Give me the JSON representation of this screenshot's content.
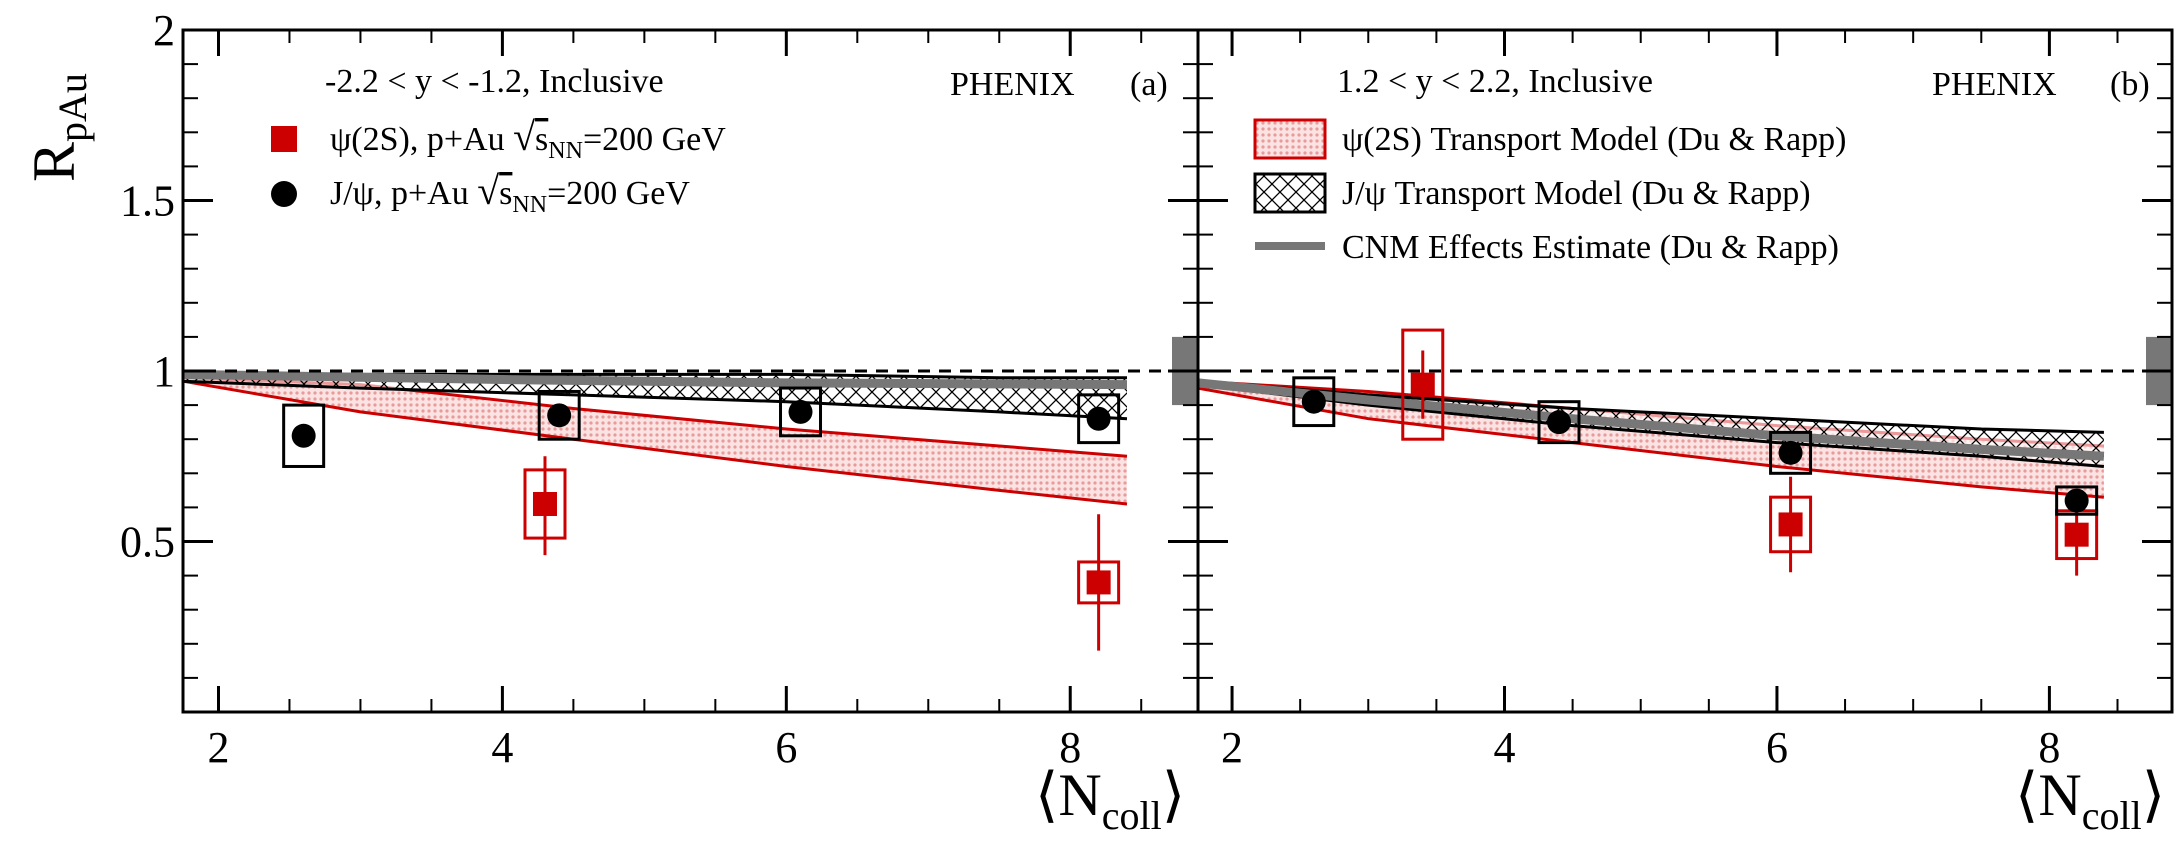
{
  "chart_data": {
    "type": "scatter",
    "ylabel": {
      "main": "R",
      "sub": "pAu"
    },
    "xlabel": {
      "main": "N",
      "sub": "coll"
    },
    "ylim": [
      0,
      2
    ],
    "yticks": [
      {
        "value": 0.5,
        "label": "0.5"
      },
      {
        "value": 1,
        "label": "1"
      },
      {
        "value": 1.5,
        "label": "1.5"
      },
      {
        "value": 2,
        "label": "2"
      }
    ],
    "reference_line": 1,
    "colors": {
      "psi2s": "#cc0000",
      "jpsi": "#000000",
      "cnm": "#777777",
      "band_fill": "#f4c8c8"
    },
    "panels": [
      {
        "id": "a",
        "tag": "(a)",
        "experiment": "PHENIX",
        "rapidity": "-2.2 < y < -1.2, Inclusive",
        "xlim": [
          1.75,
          8.9
        ],
        "xticks": [
          {
            "value": 2,
            "label": "2"
          },
          {
            "value": 4,
            "label": "4"
          },
          {
            "value": 6,
            "label": "6"
          },
          {
            "value": 8,
            "label": "8"
          }
        ],
        "global_uncertainty": [
          0.9,
          1.1
        ],
        "legend": [
          {
            "marker": "square",
            "label_pre": "ψ(2S), p+Au ",
            "sqrt_sub": "NN",
            "label_post": "=200 GeV"
          },
          {
            "marker": "circle",
            "label_pre": "J/ψ, p+Au ",
            "sqrt_sub": "NN",
            "label_post": "=200 GeV"
          }
        ],
        "series": [
          {
            "name": "ψ(2S), p+Au √sNN=200 GeV",
            "marker": "square",
            "points": [
              {
                "x": 4.3,
                "y": 0.61,
                "err_lo": 0.15,
                "err_hi": 0.14,
                "sys": 0.1
              },
              {
                "x": 8.2,
                "y": 0.38,
                "err_lo": 0.2,
                "err_hi": 0.2,
                "sys": 0.06
              }
            ]
          },
          {
            "name": "J/ψ, p+Au √sNN=200 GeV",
            "marker": "circle",
            "points": [
              {
                "x": 2.6,
                "y": 0.81,
                "err_lo": 0.03,
                "err_hi": 0.03,
                "sys": 0.09
              },
              {
                "x": 4.4,
                "y": 0.87,
                "err_lo": 0.03,
                "err_hi": 0.03,
                "sys": 0.07
              },
              {
                "x": 6.1,
                "y": 0.88,
                "err_lo": 0.02,
                "err_hi": 0.02,
                "sys": 0.07
              },
              {
                "x": 8.2,
                "y": 0.86,
                "err_lo": 0.02,
                "err_hi": 0.02,
                "sys": 0.07
              }
            ]
          }
        ],
        "bands": [
          {
            "name": "ψ(2S) Transport Model (Du & Rapp)",
            "style": "dots",
            "x": [
              1.75,
              3,
              4.5,
              6,
              7.5,
              8.4
            ],
            "lo": [
              0.97,
              0.88,
              0.8,
              0.72,
              0.65,
              0.61
            ],
            "hi": [
              0.98,
              0.96,
              0.89,
              0.83,
              0.78,
              0.75
            ]
          },
          {
            "name": "J/ψ Transport Model (Du & Rapp)",
            "style": "hatch",
            "x": [
              1.75,
              3,
              4.5,
              6,
              7.5,
              8.4
            ],
            "lo": [
              0.97,
              0.95,
              0.93,
              0.91,
              0.88,
              0.86
            ],
            "hi": [
              0.99,
              0.99,
              0.99,
              0.99,
              0.98,
              0.98
            ]
          }
        ],
        "cnm": {
          "x": [
            1.75,
            4,
            6,
            8.4
          ],
          "y": [
            0.99,
            0.975,
            0.965,
            0.96
          ]
        }
      },
      {
        "id": "b",
        "tag": "(b)",
        "experiment": "PHENIX",
        "rapidity": "1.2 < y < 2.2, Inclusive",
        "xlim": [
          1.75,
          8.9
        ],
        "xticks": [
          {
            "value": 2,
            "label": "2"
          },
          {
            "value": 4,
            "label": "4"
          },
          {
            "value": 6,
            "label": "6"
          },
          {
            "value": 8,
            "label": "8"
          }
        ],
        "global_uncertainty": [
          0.9,
          1.1
        ],
        "legend": [
          {
            "marker": "band-dots",
            "label": "ψ(2S) Transport Model (Du & Rapp)"
          },
          {
            "marker": "band-hatch",
            "label": "J/ψ Transport Model (Du & Rapp)"
          },
          {
            "marker": "line",
            "label": "CNM Effects Estimate (Du & Rapp)"
          }
        ],
        "series": [
          {
            "name": "ψ(2S), p+Au √sNN=200 GeV",
            "marker": "square",
            "points": [
              {
                "x": 3.4,
                "y": 0.96,
                "err_lo": 0.1,
                "err_hi": 0.1,
                "sys": 0.16
              },
              {
                "x": 6.1,
                "y": 0.55,
                "err_lo": 0.14,
                "err_hi": 0.14,
                "sys": 0.08
              },
              {
                "x": 8.2,
                "y": 0.52,
                "err_lo": 0.12,
                "err_hi": 0.12,
                "sys": 0.07
              }
            ]
          },
          {
            "name": "J/ψ, p+Au √sNN=200 GeV",
            "marker": "circle",
            "points": [
              {
                "x": 2.6,
                "y": 0.91,
                "err_lo": 0.02,
                "err_hi": 0.02,
                "sys": 0.07
              },
              {
                "x": 4.4,
                "y": 0.85,
                "err_lo": 0.02,
                "err_hi": 0.02,
                "sys": 0.06
              },
              {
                "x": 6.1,
                "y": 0.76,
                "err_lo": 0.02,
                "err_hi": 0.02,
                "sys": 0.06
              },
              {
                "x": 8.2,
                "y": 0.62,
                "err_lo": 0.02,
                "err_hi": 0.02,
                "sys": 0.04
              }
            ]
          }
        ],
        "bands": [
          {
            "name": "ψ(2S) Transport Model (Du & Rapp)",
            "style": "dots",
            "x": [
              1.75,
              3,
              4.5,
              6,
              7.5,
              8.4
            ],
            "lo": [
              0.95,
              0.86,
              0.79,
              0.72,
              0.66,
              0.63
            ],
            "hi": [
              0.97,
              0.94,
              0.89,
              0.84,
              0.8,
              0.78
            ]
          },
          {
            "name": "J/ψ Transport Model (Du & Rapp)",
            "style": "hatch",
            "x": [
              1.75,
              3,
              4.5,
              6,
              7.5,
              8.4
            ],
            "lo": [
              0.96,
              0.9,
              0.84,
              0.79,
              0.75,
              0.72
            ],
            "hi": [
              0.97,
              0.93,
              0.89,
              0.86,
              0.83,
              0.82
            ]
          }
        ],
        "cnm": {
          "x": [
            1.75,
            3,
            4.5,
            6,
            7.5,
            8.4
          ],
          "y": [
            0.965,
            0.915,
            0.86,
            0.81,
            0.77,
            0.75
          ]
        }
      }
    ]
  }
}
